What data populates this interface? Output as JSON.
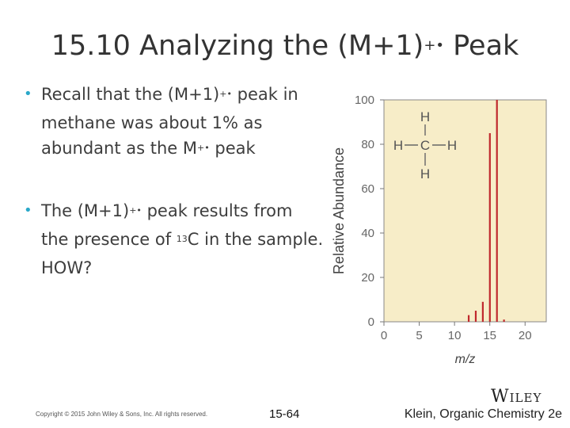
{
  "slide": {
    "title_main": "15.10 Analyzing the (M+1)",
    "title_sup": "+•",
    "title_end": " Peak",
    "bullet1": {
      "a": "Recall that the (M+1)",
      "sup1": "+•",
      "b": " peak in methane was about 1% as abundant as the M",
      "sup2": "+•",
      "c": " peak"
    },
    "bullet2": {
      "a": "The (M+1)",
      "sup1": "+•",
      "b": " peak results from the presence of ",
      "sup2": "13",
      "c": "C in the sample.  HOW?"
    },
    "bullet_glyph": "•",
    "footer": {
      "copyright": "Copyright © 2015 John Wiley & Sons, Inc. All rights reserved.",
      "page": "15-64",
      "citation": "Klein, Organic Chemistry 2e",
      "publisher": "Wiley"
    }
  },
  "chart_data": {
    "type": "bar",
    "xlabel": "m/z",
    "ylabel": "Relative Abundance",
    "xlim": [
      0,
      23
    ],
    "ylim": [
      0,
      100
    ],
    "xticks": [
      "0",
      "5",
      "10",
      "15",
      "20"
    ],
    "yticks": [
      "0",
      "20",
      "40",
      "60",
      "80",
      "100"
    ],
    "x": [
      12,
      13,
      14,
      15,
      16,
      17
    ],
    "values": [
      3,
      5,
      9,
      85,
      100,
      1
    ],
    "bar_color": "#c0282d",
    "plot_background": "#f7edc8",
    "grid": false,
    "annotation": {
      "molecule": "methane",
      "atoms": {
        "top": "H",
        "left": "H",
        "center": "C",
        "right": "H",
        "bottom": "H"
      }
    }
  }
}
